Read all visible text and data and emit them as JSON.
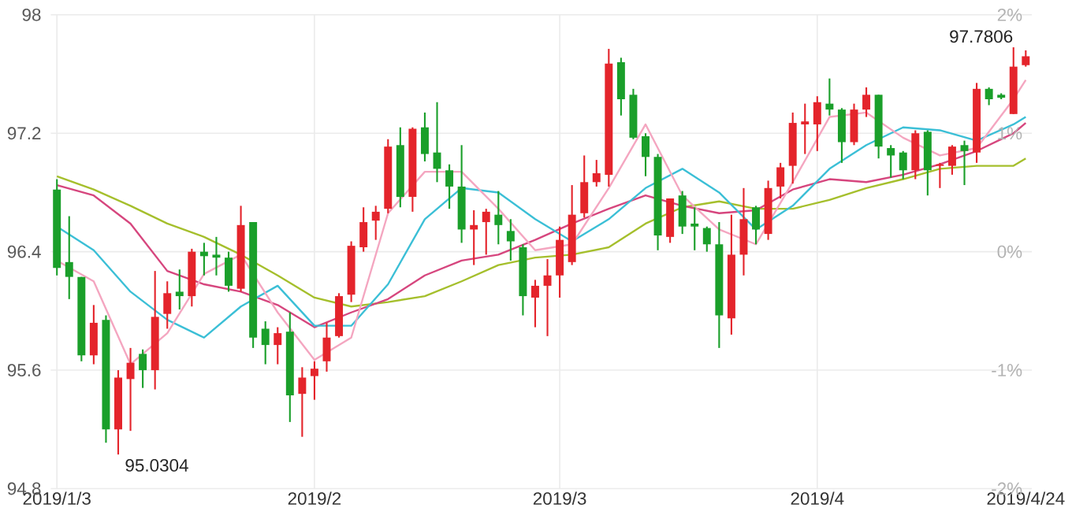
{
  "chart_data": {
    "type": "candlestick",
    "categories": [
      "2019/1/3",
      null,
      null,
      null,
      null,
      null,
      null,
      null,
      null,
      null,
      null,
      null,
      null,
      null,
      null,
      null,
      null,
      null,
      null,
      null,
      null,
      "2019/2",
      null,
      null,
      null,
      null,
      null,
      null,
      null,
      null,
      null,
      null,
      null,
      null,
      null,
      null,
      null,
      null,
      null,
      null,
      null,
      "2019/3",
      null,
      null,
      null,
      null,
      null,
      null,
      null,
      null,
      null,
      null,
      null,
      null,
      null,
      null,
      null,
      null,
      null,
      null,
      null,
      null,
      "2019/4",
      null,
      null,
      null,
      null,
      null,
      null,
      null,
      null,
      null,
      null,
      null,
      null,
      null,
      null,
      null,
      null,
      "2019/4/24"
    ],
    "ohlc": [
      [
        96.82,
        96.89,
        96.24,
        96.29
      ],
      [
        96.33,
        96.64,
        96.08,
        96.23
      ],
      [
        96.23,
        96.23,
        95.66,
        95.7
      ],
      [
        95.7,
        96.04,
        95.64,
        95.92
      ],
      [
        95.94,
        95.97,
        95.11,
        95.2
      ],
      [
        95.2,
        95.6,
        95.0304,
        95.55
      ],
      [
        95.54,
        95.75,
        95.19,
        95.65
      ],
      [
        95.71,
        95.74,
        95.48,
        95.6
      ],
      [
        95.6,
        96.27,
        95.47,
        95.96
      ],
      [
        95.98,
        96.2,
        95.88,
        96.12
      ],
      [
        96.13,
        96.28,
        96.01,
        96.1
      ],
      [
        96.1,
        96.42,
        96.03,
        96.4
      ],
      [
        96.4,
        96.46,
        96.24,
        96.37
      ],
      [
        96.38,
        96.5,
        96.24,
        96.36
      ],
      [
        96.36,
        96.4,
        96.13,
        96.17
      ],
      [
        96.15,
        96.71,
        96.13,
        96.58
      ],
      [
        96.6,
        96.6,
        95.75,
        95.82
      ],
      [
        95.88,
        95.93,
        95.64,
        95.77
      ],
      [
        95.77,
        95.89,
        95.64,
        95.85
      ],
      [
        95.86,
        95.99,
        95.25,
        95.43
      ],
      [
        95.44,
        95.62,
        95.15,
        95.55
      ],
      [
        95.56,
        95.66,
        95.4,
        95.61
      ],
      [
        95.66,
        95.92,
        95.59,
        95.82
      ],
      [
        95.83,
        96.12,
        95.82,
        96.1
      ],
      [
        96.11,
        96.47,
        96.06,
        96.44
      ],
      [
        96.43,
        96.7,
        96.4,
        96.6
      ],
      [
        96.61,
        96.71,
        96.48,
        96.67
      ],
      [
        96.69,
        97.16,
        96.66,
        97.11
      ],
      [
        97.12,
        97.24,
        96.7,
        96.77
      ],
      [
        96.77,
        97.24,
        96.67,
        97.23
      ],
      [
        97.24,
        97.34,
        97.01,
        97.06
      ],
      [
        97.07,
        97.41,
        96.87,
        96.96
      ],
      [
        96.95,
        96.99,
        96.69,
        96.84
      ],
      [
        96.84,
        97.12,
        96.46,
        96.55
      ],
      [
        96.55,
        96.68,
        96.31,
        96.58
      ],
      [
        96.6,
        96.69,
        96.38,
        96.67
      ],
      [
        96.65,
        96.81,
        96.45,
        96.58
      ],
      [
        96.54,
        96.62,
        96.34,
        96.47
      ],
      [
        96.43,
        96.45,
        95.97,
        96.1
      ],
      [
        96.09,
        96.21,
        95.89,
        96.17
      ],
      [
        96.17,
        96.35,
        95.83,
        96.24
      ],
      [
        96.24,
        96.57,
        96.09,
        96.48
      ],
      [
        96.33,
        96.85,
        96.31,
        96.65
      ],
      [
        96.66,
        97.05,
        96.63,
        96.87
      ],
      [
        96.87,
        97.02,
        96.84,
        96.93
      ],
      [
        96.92,
        97.77,
        96.84,
        97.67
      ],
      [
        97.68,
        97.71,
        97.32,
        97.43
      ],
      [
        97.46,
        97.5,
        97.16,
        97.17
      ],
      [
        97.18,
        97.2,
        96.91,
        97.04
      ],
      [
        97.04,
        97.06,
        96.41,
        96.51
      ],
      [
        96.5,
        96.76,
        96.46,
        96.76
      ],
      [
        96.78,
        96.81,
        96.52,
        96.57
      ],
      [
        96.59,
        96.7,
        96.41,
        96.57
      ],
      [
        96.56,
        96.57,
        96.4,
        96.45
      ],
      [
        96.45,
        96.6,
        95.75,
        95.97
      ],
      [
        95.95,
        96.65,
        95.84,
        96.38
      ],
      [
        96.38,
        96.83,
        96.24,
        96.62
      ],
      [
        96.7,
        96.71,
        96.45,
        96.55
      ],
      [
        96.52,
        96.88,
        96.48,
        96.83
      ],
      [
        96.84,
        97.0,
        96.76,
        96.97
      ],
      [
        96.98,
        97.34,
        96.86,
        97.27
      ],
      [
        97.26,
        97.4,
        97.06,
        97.28
      ],
      [
        97.26,
        97.45,
        97.08,
        97.41
      ],
      [
        97.4,
        97.57,
        97.32,
        97.36
      ],
      [
        97.36,
        97.37,
        97.0,
        97.14
      ],
      [
        97.14,
        97.4,
        97.12,
        97.36
      ],
      [
        97.36,
        97.51,
        97.31,
        97.46
      ],
      [
        97.46,
        97.46,
        97.03,
        97.11
      ],
      [
        97.1,
        97.12,
        96.9,
        97.05
      ],
      [
        97.07,
        97.08,
        96.89,
        96.95
      ],
      [
        96.95,
        97.22,
        96.89,
        97.2
      ],
      [
        97.21,
        97.22,
        96.78,
        96.95
      ],
      [
        96.98,
        97.0,
        96.83,
        96.99
      ],
      [
        96.98,
        97.12,
        96.92,
        97.11
      ],
      [
        97.12,
        97.15,
        96.85,
        97.08
      ],
      [
        97.07,
        97.54,
        97.0,
        97.5
      ],
      [
        97.5,
        97.51,
        97.39,
        97.43
      ],
      [
        97.46,
        97.47,
        97.43,
        97.44
      ],
      [
        97.33,
        97.7806,
        97.33,
        97.65
      ],
      [
        97.66,
        97.76,
        97.65,
        97.72
      ]
    ],
    "colors": [
      "#1a9f2a",
      "#1a9f2a",
      "#1a9f2a",
      "#e4242b",
      "#1a9f2a",
      "#e4242b",
      "#e4242b",
      "#1a9f2a",
      "#e4242b",
      "#e4242b",
      "#1a9f2a",
      "#e4242b",
      "#1a9f2a",
      "#1a9f2a",
      "#1a9f2a",
      "#e4242b",
      "#1a9f2a",
      "#1a9f2a",
      "#e4242b",
      "#1a9f2a",
      "#e4242b",
      "#e4242b",
      "#e4242b",
      "#e4242b",
      "#e4242b",
      "#e4242b",
      "#e4242b",
      "#e4242b",
      "#1a9f2a",
      "#e4242b",
      "#1a9f2a",
      "#1a9f2a",
      "#1a9f2a",
      "#1a9f2a",
      "#e4242b",
      "#e4242b",
      "#1a9f2a",
      "#1a9f2a",
      "#1a9f2a",
      "#e4242b",
      "#e4242b",
      "#e4242b",
      "#e4242b",
      "#e4242b",
      "#e4242b",
      "#e4242b",
      "#1a9f2a",
      "#1a9f2a",
      "#1a9f2a",
      "#1a9f2a",
      "#e4242b",
      "#1a9f2a",
      "#1a9f2a",
      "#1a9f2a",
      "#1a9f2a",
      "#e4242b",
      "#e4242b",
      "#1a9f2a",
      "#e4242b",
      "#e4242b",
      "#e4242b",
      "#e4242b",
      "#e4242b",
      "#1a9f2a",
      "#1a9f2a",
      "#e4242b",
      "#e4242b",
      "#1a9f2a",
      "#1a9f2a",
      "#1a9f2a",
      "#e4242b",
      "#1a9f2a",
      "#e4242b",
      "#e4242b",
      "#1a9f2a",
      "#e4242b",
      "#1a9f2a",
      "#1a9f2a",
      "#e4242b",
      "#e4242b"
    ],
    "series": [
      {
        "type": "line",
        "color": "#a5bf2c",
        "values": [
          96.91,
          null,
          null,
          96.82,
          null,
          null,
          96.71,
          null,
          null,
          96.59,
          null,
          null,
          96.5,
          null,
          null,
          96.38,
          null,
          null,
          96.24,
          null,
          null,
          96.09,
          null,
          null,
          96.03,
          null,
          null,
          96.06,
          null,
          null,
          96.1,
          null,
          null,
          96.2,
          null,
          null,
          96.31,
          null,
          null,
          96.36,
          null,
          null,
          96.38,
          null,
          null,
          96.43,
          null,
          null,
          96.59,
          null,
          null,
          96.7,
          null,
          null,
          96.74,
          null,
          null,
          96.69,
          null,
          null,
          96.69,
          null,
          null,
          96.75,
          null,
          null,
          96.83,
          null,
          null,
          96.89,
          null,
          null,
          96.96,
          null,
          null,
          96.98,
          null,
          null,
          96.98,
          97.03
        ]
      },
      {
        "type": "line",
        "color": "#d6467e",
        "values": [
          96.85,
          null,
          null,
          96.78,
          null,
          null,
          96.59,
          null,
          null,
          96.27,
          null,
          null,
          96.18,
          null,
          null,
          96.13,
          null,
          null,
          96.04,
          null,
          null,
          95.89,
          null,
          null,
          95.99,
          null,
          null,
          96.08,
          null,
          null,
          96.24,
          null,
          null,
          96.34,
          null,
          null,
          96.38,
          null,
          null,
          96.48,
          null,
          null,
          96.59,
          null,
          null,
          96.69,
          null,
          null,
          96.78,
          null,
          null,
          96.71,
          null,
          null,
          96.66,
          null,
          null,
          96.68,
          null,
          null,
          96.82,
          null,
          null,
          96.89,
          null,
          null,
          96.87,
          null,
          null,
          96.92,
          null,
          null,
          96.99,
          null,
          null,
          97.08,
          null,
          null,
          97.2,
          97.27
        ]
      },
      {
        "type": "line",
        "color": "#3bbfd6",
        "values": [
          96.57,
          null,
          null,
          96.41,
          null,
          null,
          96.13,
          null,
          null,
          95.94,
          null,
          null,
          95.82,
          null,
          null,
          96.03,
          null,
          null,
          96.17,
          null,
          null,
          95.9,
          null,
          null,
          95.9,
          null,
          null,
          96.18,
          null,
          null,
          96.62,
          null,
          null,
          96.83,
          null,
          null,
          96.8,
          null,
          null,
          96.62,
          null,
          null,
          96.47,
          null,
          null,
          96.62,
          null,
          null,
          96.83,
          null,
          null,
          96.96,
          null,
          null,
          96.8,
          null,
          null,
          96.55,
          null,
          null,
          96.71,
          null,
          null,
          96.96,
          null,
          null,
          97.12,
          null,
          null,
          97.24,
          null,
          null,
          97.22,
          null,
          null,
          97.15,
          null,
          null,
          97.26,
          97.31
        ]
      },
      {
        "type": "line",
        "color": "#f4a6c0",
        "values": [
          96.34,
          null,
          null,
          96.2,
          null,
          null,
          95.64,
          null,
          null,
          95.85,
          null,
          null,
          96.25,
          null,
          null,
          96.38,
          null,
          null,
          95.99,
          null,
          null,
          95.67,
          null,
          null,
          95.82,
          null,
          null,
          96.66,
          null,
          null,
          96.94,
          null,
          null,
          96.94,
          null,
          null,
          96.69,
          null,
          null,
          96.41,
          null,
          null,
          96.45,
          null,
          null,
          96.83,
          null,
          null,
          97.26,
          null,
          null,
          96.78,
          null,
          null,
          96.55,
          null,
          null,
          96.45,
          null,
          null,
          96.87,
          null,
          null,
          97.31,
          null,
          null,
          97.34,
          null,
          null,
          97.17,
          null,
          null,
          97.05,
          null,
          null,
          97.1,
          null,
          null,
          97.43,
          97.56
        ]
      }
    ],
    "ylim": [
      94.8,
      98
    ],
    "yticks": [
      94.8,
      95.6,
      96.4,
      97.2,
      98
    ],
    "y2lim": [
      -2,
      2
    ],
    "y2ticks": [
      {
        "value": -2,
        "label": "-2%"
      },
      {
        "value": -1,
        "label": "-1%"
      },
      {
        "value": 0,
        "label": "0%"
      },
      {
        "value": 1,
        "label": "1%"
      },
      {
        "value": 2,
        "label": "2%"
      }
    ],
    "grid": true,
    "annotations": [
      "97.7806",
      "95.0304"
    ]
  }
}
